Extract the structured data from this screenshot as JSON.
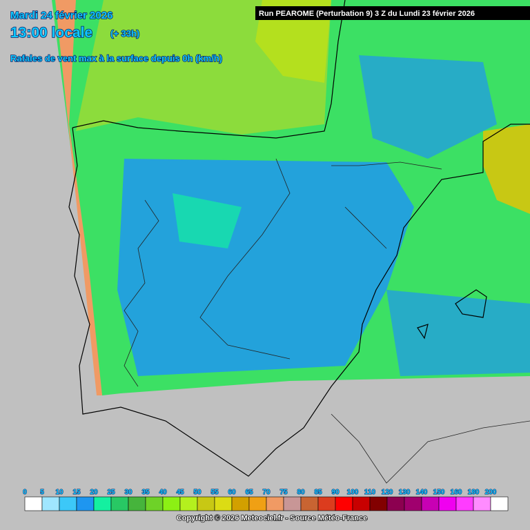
{
  "header": {
    "date": "Mardi 24 février 2026",
    "time": "13:00 locale",
    "lead": "(+ 33h)",
    "subtitle": "Rafales de vent max à la surface depuis 0h (km/h)",
    "run": "Run PEAROME (Perturbation 9) 3 Z du Lundi 23 février 2026"
  },
  "legend": {
    "values": [
      0,
      5,
      10,
      15,
      20,
      25,
      30,
      35,
      40,
      45,
      50,
      55,
      60,
      65,
      70,
      75,
      80,
      85,
      90,
      100,
      110,
      120,
      130,
      140,
      150,
      160,
      180,
      200
    ],
    "colors": [
      "#ffffff",
      "#a0e6ff",
      "#3cc8f8",
      "#1e96f0",
      "#14f0a0",
      "#28c864",
      "#46b43c",
      "#6ed228",
      "#8cf014",
      "#b4f01e",
      "#c8c814",
      "#dcdc14",
      "#d2a000",
      "#f0a014",
      "#f09a64",
      "#c89696",
      "#c86432",
      "#dc3c1e",
      "#ff0000",
      "#c80000",
      "#820000",
      "#8c0050",
      "#a0006e",
      "#c800b4",
      "#f000f0",
      "#ff3cff",
      "#ff8cff",
      "#ffffff"
    ]
  },
  "footer": {
    "copyright": "Copyright © 2026 Meteociel.fr - Source Météo-France"
  }
}
